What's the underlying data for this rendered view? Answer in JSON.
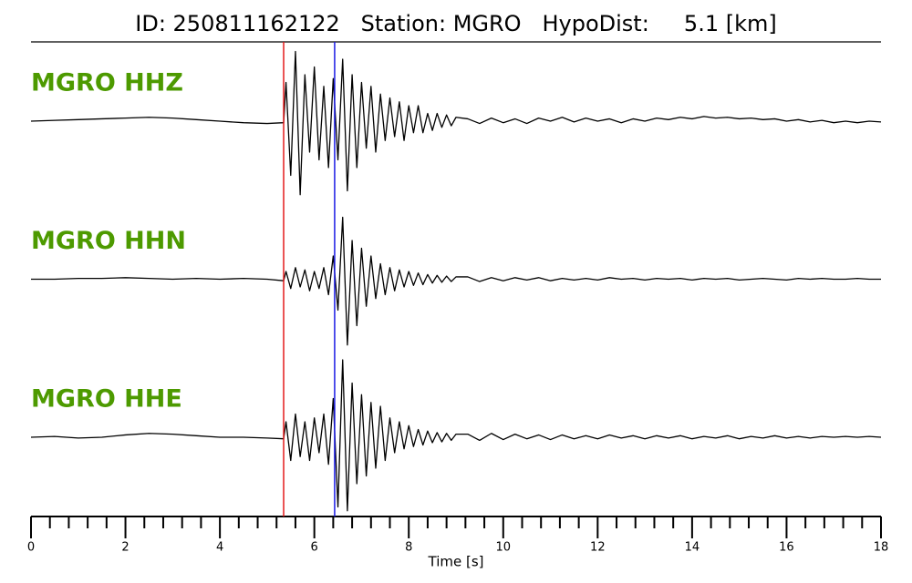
{
  "chart_data": {
    "type": "line",
    "title": "ID: 250811162122   Station: MGRO   HypoDist:     5.1 [km]",
    "xlabel": "Time [s]",
    "xlim": [
      0,
      18
    ],
    "xticks": [
      0,
      2,
      4,
      6,
      8,
      10,
      12,
      14,
      16,
      18
    ],
    "xminorticks": [
      0.4,
      0.8,
      1.2,
      1.6,
      2.4,
      2.8,
      3.2,
      3.6,
      4.4,
      4.8,
      5.2,
      5.6,
      6.4,
      6.8,
      7.2,
      7.6,
      8.4,
      8.8,
      9.2,
      9.6,
      10.4,
      10.8,
      11.2,
      11.6,
      12.4,
      12.8,
      13.2,
      13.6,
      14.4,
      14.8,
      15.2,
      15.6,
      16.4,
      16.8,
      17.2,
      17.6
    ],
    "ylim": [
      -1,
      1
    ],
    "label_color": "#4d9a00",
    "picks": [
      {
        "x": 5.35,
        "color": "#e41a1c"
      },
      {
        "x": 6.43,
        "color": "#1a1ae4"
      }
    ],
    "x": [
      0,
      0.5,
      1,
      1.5,
      2,
      2.5,
      3,
      3.5,
      4,
      4.5,
      5,
      5.35,
      5.4,
      5.5,
      5.6,
      5.7,
      5.8,
      5.9,
      6,
      6.1,
      6.2,
      6.3,
      6.4,
      6.5,
      6.6,
      6.7,
      6.8,
      6.9,
      7,
      7.1,
      7.2,
      7.3,
      7.4,
      7.5,
      7.6,
      7.7,
      7.8,
      7.9,
      8,
      8.1,
      8.2,
      8.3,
      8.4,
      8.5,
      8.6,
      8.7,
      8.8,
      8.9,
      9,
      9.25,
      9.5,
      9.75,
      10,
      10.25,
      10.5,
      10.75,
      11,
      11.25,
      11.5,
      11.75,
      12,
      12.25,
      12.5,
      12.75,
      13,
      13.25,
      13.5,
      13.75,
      14,
      14.25,
      14.5,
      14.75,
      15,
      15.25,
      15.5,
      15.75,
      16,
      16.25,
      16.5,
      16.75,
      17,
      17.25,
      17.5,
      17.75,
      18
    ],
    "series": [
      {
        "name": "MGRO HHZ",
        "color": "#000000",
        "values": [
          0,
          0.01,
          0.02,
          0.03,
          0.04,
          0.05,
          0.04,
          0.02,
          0,
          -0.02,
          -0.03,
          -0.02,
          0.5,
          -0.7,
          0.9,
          -0.95,
          0.6,
          -0.4,
          0.7,
          -0.5,
          0.45,
          -0.6,
          0.55,
          -0.5,
          0.8,
          -0.9,
          0.6,
          -0.6,
          0.5,
          -0.35,
          0.45,
          -0.4,
          0.35,
          -0.25,
          0.3,
          -0.2,
          0.25,
          -0.25,
          0.2,
          -0.15,
          0.2,
          -0.15,
          0.1,
          -0.12,
          0.1,
          -0.08,
          0.08,
          -0.06,
          0.05,
          0.03,
          -0.03,
          0.04,
          -0.02,
          0.03,
          -0.03,
          0.04,
          0,
          0.05,
          -0.01,
          0.04,
          0,
          0.03,
          -0.02,
          0.03,
          0,
          0.04,
          0.02,
          0.05,
          0.03,
          0.06,
          0.04,
          0.05,
          0.03,
          0.04,
          0.02,
          0.03,
          0,
          0.02,
          -0.01,
          0.01,
          -0.02,
          0,
          -0.02,
          0,
          -0.01
        ]
      },
      {
        "name": "MGRO HHN",
        "color": "#000000",
        "values": [
          0,
          0,
          0.01,
          0.01,
          0.02,
          0.01,
          0,
          0.01,
          0,
          0.01,
          0,
          -0.02,
          0.1,
          -0.12,
          0.15,
          -0.1,
          0.12,
          -0.15,
          0.1,
          -0.12,
          0.15,
          -0.2,
          0.3,
          -0.4,
          0.8,
          -0.85,
          0.5,
          -0.6,
          0.4,
          -0.35,
          0.3,
          -0.25,
          0.2,
          -0.2,
          0.15,
          -0.15,
          0.12,
          -0.1,
          0.1,
          -0.08,
          0.08,
          -0.07,
          0.06,
          -0.05,
          0.05,
          -0.04,
          0.04,
          -0.03,
          0.03,
          0.03,
          -0.03,
          0.02,
          -0.02,
          0.02,
          -0.01,
          0.02,
          -0.02,
          0.01,
          -0.01,
          0.01,
          -0.01,
          0.02,
          0,
          0.01,
          -0.01,
          0.01,
          0,
          0.01,
          -0.01,
          0.01,
          0,
          0.01,
          -0.01,
          0,
          0.01,
          0,
          -0.01,
          0.01,
          0,
          0.01,
          0,
          0,
          0.01,
          0,
          0
        ]
      },
      {
        "name": "MGRO HHE",
        "color": "#000000",
        "values": [
          0,
          0.01,
          -0.01,
          0,
          0.03,
          0.05,
          0.04,
          0.02,
          0,
          0,
          -0.01,
          -0.02,
          0.2,
          -0.3,
          0.3,
          -0.25,
          0.2,
          -0.3,
          0.25,
          -0.2,
          0.3,
          -0.35,
          0.5,
          -0.9,
          1.0,
          -0.95,
          0.7,
          -0.6,
          0.55,
          -0.5,
          0.45,
          -0.4,
          0.4,
          -0.3,
          0.25,
          -0.2,
          0.2,
          -0.15,
          0.15,
          -0.12,
          0.1,
          -0.1,
          0.08,
          -0.07,
          0.06,
          -0.06,
          0.05,
          -0.04,
          0.04,
          0.04,
          -0.04,
          0.05,
          -0.03,
          0.04,
          -0.02,
          0.03,
          -0.03,
          0.03,
          -0.02,
          0.02,
          -0.02,
          0.03,
          -0.01,
          0.02,
          -0.02,
          0.02,
          -0.01,
          0.02,
          -0.02,
          0.01,
          -0.01,
          0.02,
          -0.02,
          0.01,
          -0.01,
          0.02,
          -0.01,
          0.01,
          -0.01,
          0.01,
          0,
          0.01,
          0,
          0.01,
          0
        ]
      }
    ]
  }
}
